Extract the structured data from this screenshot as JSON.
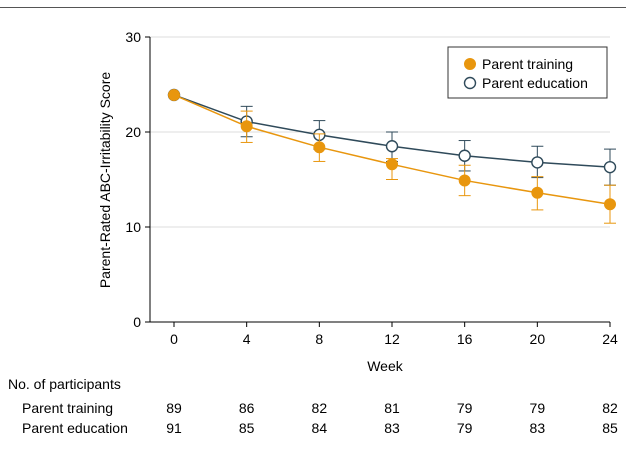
{
  "chart_data": {
    "type": "line",
    "title": "",
    "xlabel": "Week",
    "ylabel": "Parent-Rated ABC-Irritability Score",
    "x": [
      0,
      4,
      8,
      12,
      16,
      20,
      24
    ],
    "xticks": [
      "0",
      "4",
      "8",
      "12",
      "16",
      "20",
      "24"
    ],
    "yticks": [
      "0",
      "10",
      "20",
      "30"
    ],
    "ylim": [
      0,
      30
    ],
    "xlim": [
      0,
      24
    ],
    "grid": "horizontal",
    "legend_position": "top-right",
    "series": [
      {
        "name": "Parent training",
        "marker": "filled-circle",
        "color": "#E8960E",
        "values": [
          23.9,
          20.6,
          18.4,
          16.6,
          14.9,
          13.6,
          12.4
        ],
        "error_low": [
          23.9,
          18.9,
          16.9,
          15.0,
          13.3,
          11.8,
          10.4
        ],
        "error_high": [
          23.9,
          22.2,
          19.8,
          17.2,
          16.5,
          15.3,
          14.4
        ]
      },
      {
        "name": "Parent education",
        "marker": "open-circle",
        "color": "#2F4A5A",
        "values": [
          23.9,
          21.1,
          19.7,
          18.5,
          17.5,
          16.8,
          16.3
        ],
        "error_low": [
          23.9,
          19.5,
          18.2,
          16.9,
          15.9,
          15.2,
          14.4
        ],
        "error_high": [
          23.9,
          22.7,
          21.2,
          20.0,
          19.1,
          18.5,
          18.2
        ]
      }
    ],
    "participants_table": {
      "heading": "No. of participants",
      "rows": [
        {
          "label": "Parent training",
          "values": [
            "89",
            "86",
            "82",
            "81",
            "79",
            "79",
            "82"
          ]
        },
        {
          "label": "Parent education",
          "values": [
            "91",
            "85",
            "84",
            "83",
            "79",
            "83",
            "85"
          ]
        }
      ]
    }
  }
}
